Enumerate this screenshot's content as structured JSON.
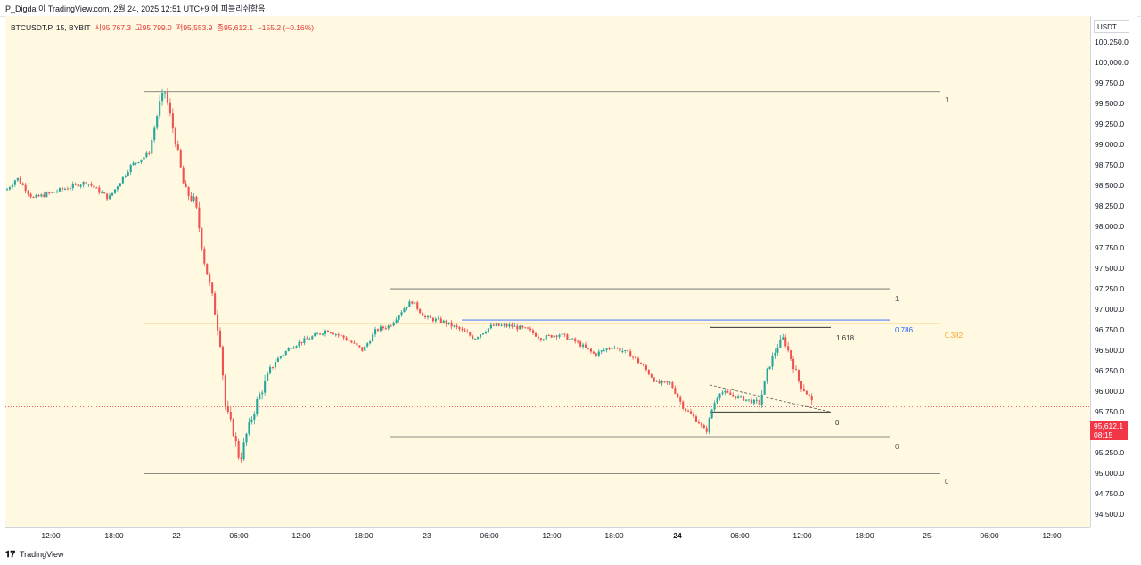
{
  "header": {
    "publish_line": "P_Digda 이 TradingView.com, 2월 24, 2025 12:51 UTC+9 에 퍼블리쉬함음"
  },
  "legend": {
    "symbol": "BTCUSDT.P, 15, BYBIT",
    "open": "시95,767.3",
    "high": "고95,799.0",
    "low": "저95,553.9",
    "close": "종95,612.1",
    "change": "−155.2 (−0.16%)"
  },
  "price_axis": {
    "unit": "USDT",
    "ticks": [
      "100,250.0",
      "100,000.0",
      "99,750.0",
      "99,500.0",
      "99,250.0",
      "99,000.0",
      "98,750.0",
      "98,500.0",
      "98,250.0",
      "98,000.0",
      "97,750.0",
      "97,500.0",
      "97,250.0",
      "97,000.0",
      "96,750.0",
      "96,500.0",
      "96,250.0",
      "96,000.0",
      "95,750.0",
      "95,500.0",
      "95,250.0",
      "95,000.0",
      "94,750.0",
      "94,500.0"
    ],
    "current_price": "95,612.1",
    "countdown": "08:15"
  },
  "time_axis": {
    "ticks": [
      {
        "label": "12:00",
        "bold": false
      },
      {
        "label": "18:00",
        "bold": false
      },
      {
        "label": "22",
        "bold": false
      },
      {
        "label": "06:00",
        "bold": false
      },
      {
        "label": "12:00",
        "bold": false
      },
      {
        "label": "18:00",
        "bold": false
      },
      {
        "label": "23",
        "bold": false
      },
      {
        "label": "06:00",
        "bold": false
      },
      {
        "label": "12:00",
        "bold": false
      },
      {
        "label": "18:00",
        "bold": false
      },
      {
        "label": "24",
        "bold": true
      },
      {
        "label": "06:00",
        "bold": false
      },
      {
        "label": "12:00",
        "bold": false
      },
      {
        "label": "18:00",
        "bold": false
      },
      {
        "label": "25",
        "bold": false
      },
      {
        "label": "06:00",
        "bold": false
      },
      {
        "label": "12:00",
        "bold": false
      }
    ]
  },
  "fib_labels": {
    "big_top": "1",
    "big_bottom": "0",
    "big_382": "0.382",
    "mid_top": "1",
    "mid_bottom": "0",
    "mid_786": "0.786",
    "small_1618": "1.618",
    "small_zero": "0"
  },
  "colors": {
    "up": "#26a69a",
    "down": "#ef5350",
    "background": "#fff9e1",
    "fib_382": "#f5a623",
    "fib_786": "#2962ff",
    "current_price": "#f23645"
  },
  "footer": {
    "brand": "TradingView"
  },
  "chart_data": {
    "type": "candlestick",
    "title": "BTCUSDT.P, 15, BYBIT",
    "ylim": [
      94400,
      100400
    ],
    "key_levels": {
      "swing_high": 99450,
      "swing_low": 94800,
      "mid_range_high": 97050,
      "mid_range_low": 95250,
      "fib_382_level": 96630,
      "fib_786_level": 96670,
      "current": 95612.1
    },
    "path_points": [
      [
        0,
        98250
      ],
      [
        12,
        98400
      ],
      [
        30,
        98150
      ],
      [
        60,
        98250
      ],
      [
        90,
        98350
      ],
      [
        115,
        98150
      ],
      [
        140,
        98550
      ],
      [
        160,
        98700
      ],
      [
        172,
        99300
      ],
      [
        178,
        99450
      ],
      [
        190,
        98850
      ],
      [
        200,
        98250
      ],
      [
        212,
        98100
      ],
      [
        222,
        97400
      ],
      [
        232,
        96900
      ],
      [
        240,
        96400
      ],
      [
        246,
        95600
      ],
      [
        255,
        95300
      ],
      [
        262,
        94950
      ],
      [
        270,
        95300
      ],
      [
        282,
        95700
      ],
      [
        300,
        96150
      ],
      [
        320,
        96350
      ],
      [
        340,
        96450
      ],
      [
        360,
        96550
      ],
      [
        380,
        96450
      ],
      [
        400,
        96300
      ],
      [
        415,
        96550
      ],
      [
        430,
        96600
      ],
      [
        445,
        96800
      ],
      [
        455,
        96900
      ],
      [
        470,
        96700
      ],
      [
        490,
        96650
      ],
      [
        510,
        96550
      ],
      [
        525,
        96450
      ],
      [
        545,
        96600
      ],
      [
        565,
        96600
      ],
      [
        585,
        96550
      ],
      [
        600,
        96450
      ],
      [
        620,
        96500
      ],
      [
        640,
        96400
      ],
      [
        660,
        96250
      ],
      [
        680,
        96350
      ],
      [
        700,
        96250
      ],
      [
        715,
        96100
      ],
      [
        730,
        95900
      ],
      [
        745,
        95900
      ],
      [
        760,
        95600
      ],
      [
        775,
        95450
      ],
      [
        785,
        95300
      ],
      [
        792,
        95600
      ],
      [
        800,
        95800
      ],
      [
        815,
        95750
      ],
      [
        830,
        95700
      ],
      [
        845,
        95650
      ],
      [
        855,
        96100
      ],
      [
        865,
        96350
      ],
      [
        872,
        96450
      ],
      [
        882,
        96150
      ],
      [
        890,
        95900
      ],
      [
        900,
        95750
      ],
      [
        906,
        95612
      ]
    ]
  }
}
